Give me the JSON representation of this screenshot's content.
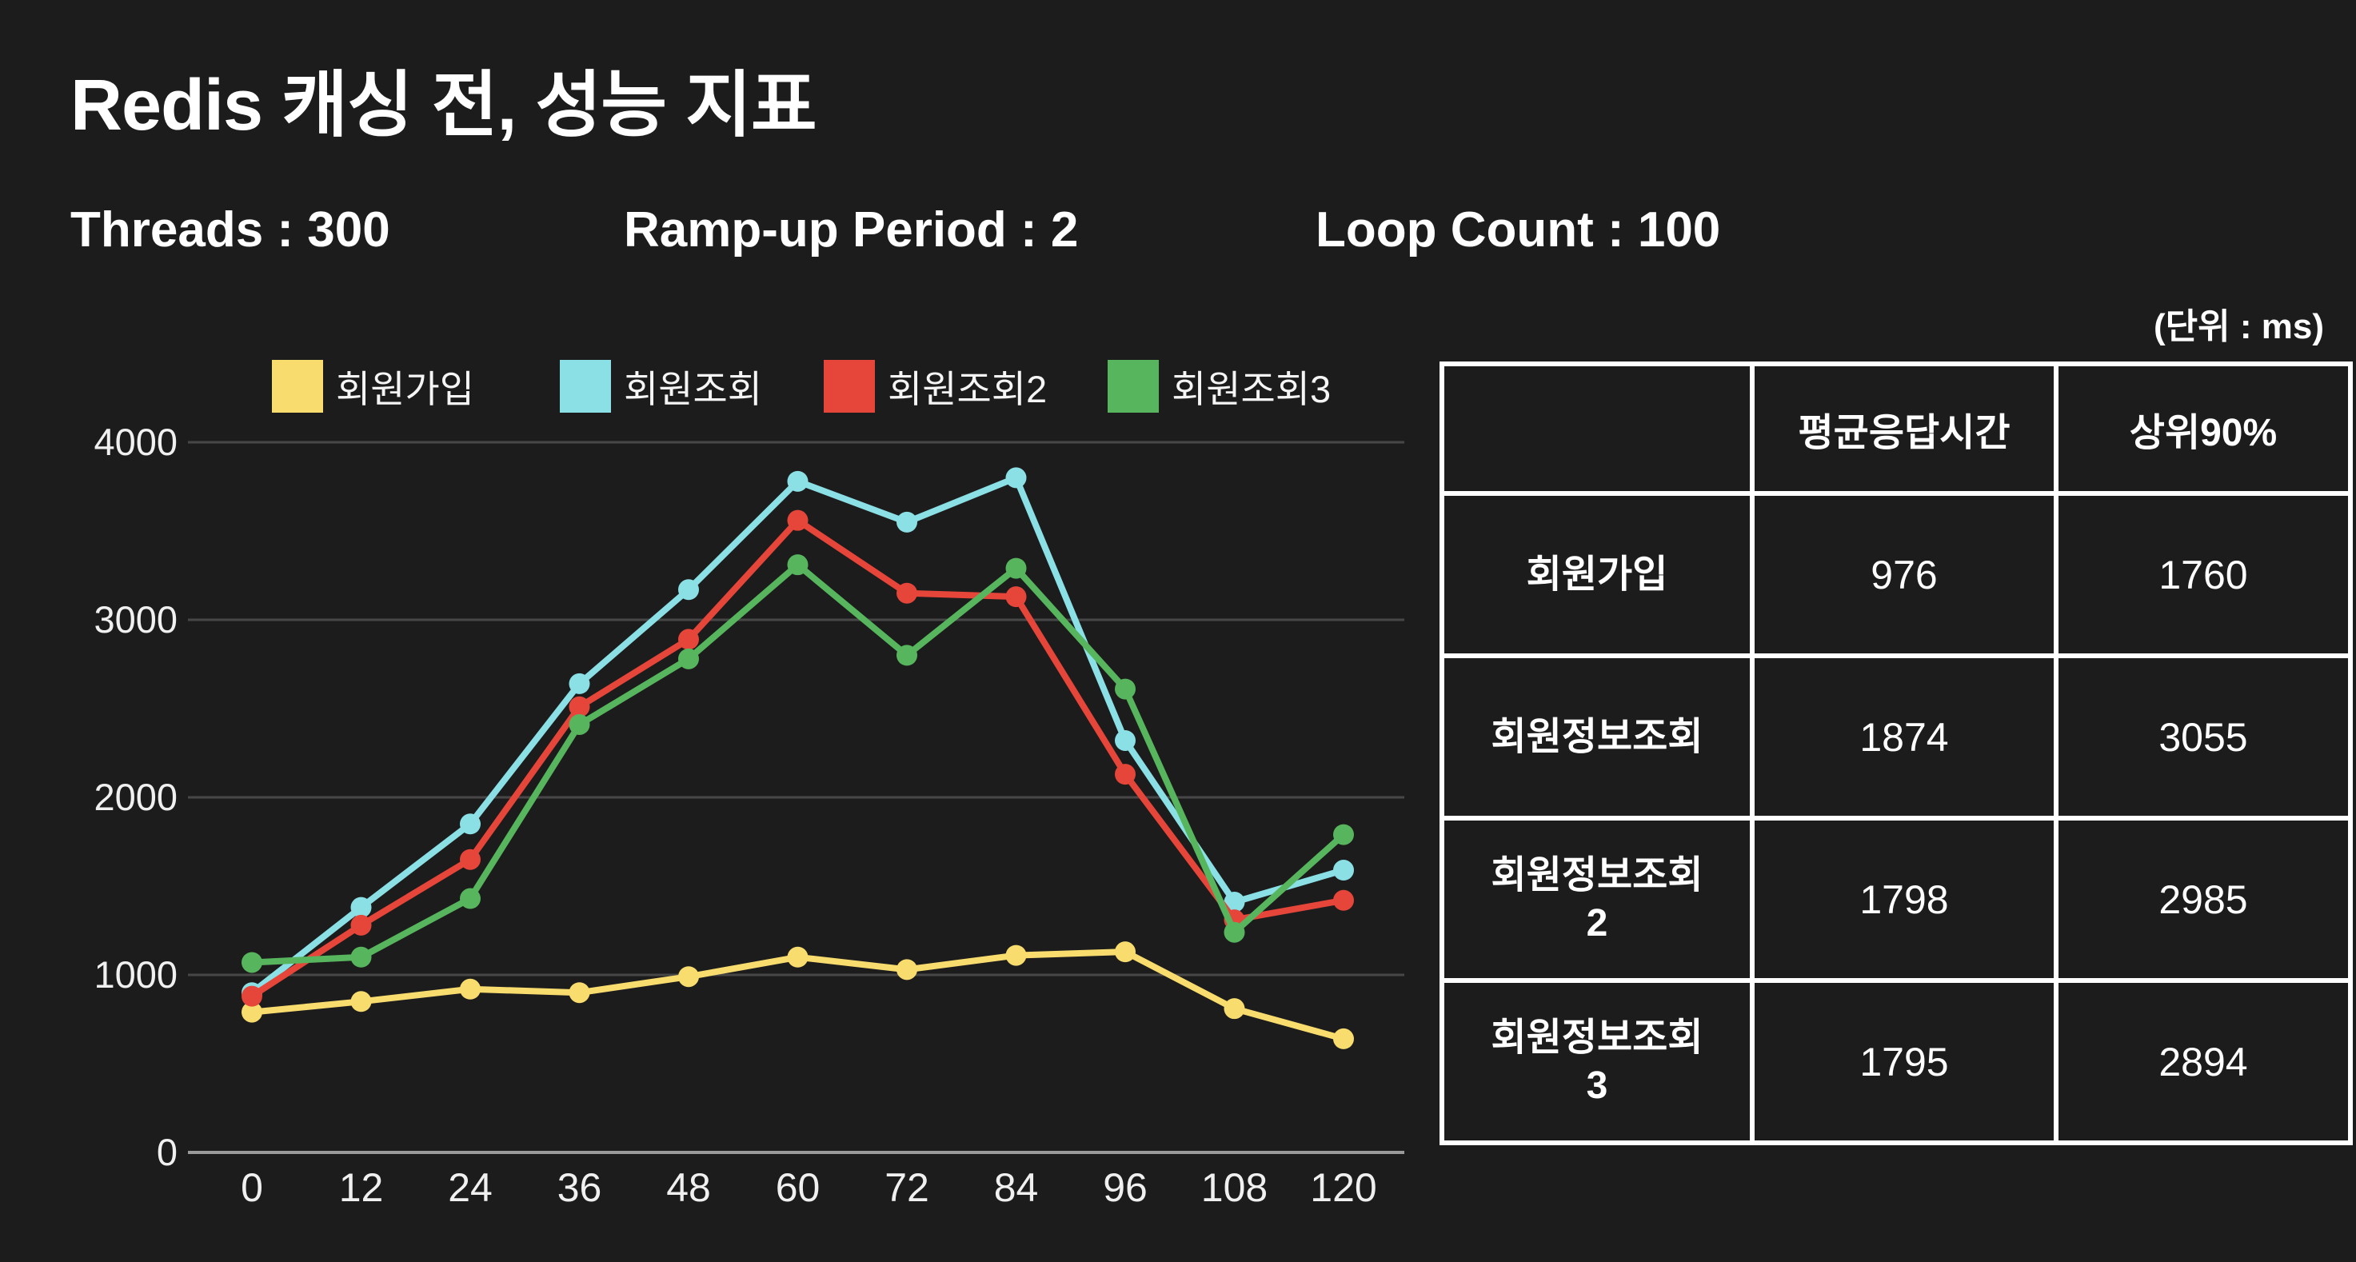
{
  "header": {
    "title": "Redis 캐싱 전, 성능 지표",
    "params": [
      {
        "label": "Threads : 300"
      },
      {
        "label": "Ramp-up Period : 2"
      },
      {
        "label": "Loop Count : 100"
      }
    ]
  },
  "chart_data": {
    "type": "line",
    "title": "",
    "xlabel": "",
    "ylabel": "",
    "x": [
      0,
      12,
      24,
      36,
      48,
      60,
      72,
      84,
      96,
      108,
      120
    ],
    "xtick_labels": [
      "0",
      "12",
      "24",
      "36",
      "48",
      "60",
      "72",
      "84",
      "96",
      "108",
      "120"
    ],
    "yticks": [
      0,
      1000,
      2000,
      3000,
      4000
    ],
    "ylim": [
      0,
      4000
    ],
    "grid": true,
    "legend_position": "top",
    "series": [
      {
        "name": "회원가입",
        "color": "#f8dc6e",
        "values": [
          790,
          850,
          920,
          900,
          990,
          1100,
          1030,
          1110,
          1130,
          810,
          640
        ]
      },
      {
        "name": "회원조회",
        "color": "#8be0e6",
        "values": [
          900,
          1380,
          1850,
          2640,
          3170,
          3780,
          3550,
          3800,
          2320,
          1410,
          1590
        ]
      },
      {
        "name": "회원조회2",
        "color": "#e6453a",
        "values": [
          880,
          1280,
          1650,
          2510,
          2890,
          3560,
          3150,
          3130,
          2130,
          1310,
          1420
        ]
      },
      {
        "name": "회원조회3",
        "color": "#57b55e",
        "values": [
          1070,
          1100,
          1430,
          2410,
          2780,
          3310,
          2800,
          3290,
          2610,
          1240,
          1790
        ]
      }
    ]
  },
  "table": {
    "unit_note": "(단위 : ms)",
    "columns": [
      "",
      "평균응답시간",
      "상위90%"
    ],
    "rows": [
      {
        "label": "회원가입",
        "avg": "976",
        "p90": "1760"
      },
      {
        "label": "회원정보조회",
        "avg": "1874",
        "p90": "3055"
      },
      {
        "label": "회원정보조회\n2",
        "avg": "1798",
        "p90": "2985"
      },
      {
        "label": "회원정보조회\n3",
        "avg": "1795",
        "p90": "2894"
      }
    ]
  },
  "colors": {
    "background": "#1c1c1c",
    "gridline": "#474747",
    "zero_axis": "#9a9a9a",
    "text": "#ffffff"
  }
}
